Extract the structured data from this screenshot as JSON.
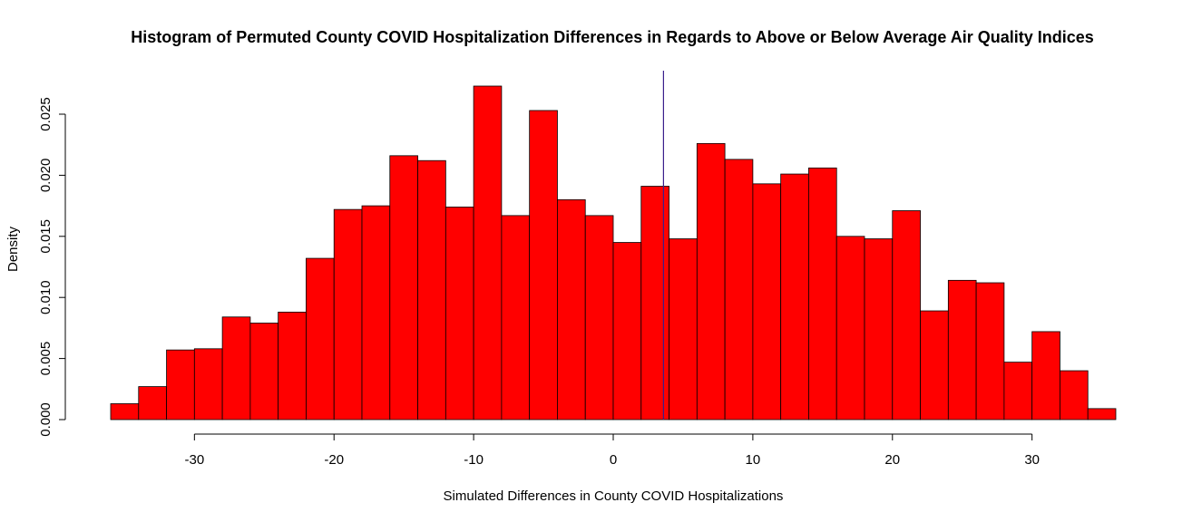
{
  "chart_data": {
    "type": "bar",
    "title": "Histogram of Permuted County COVID Hospitalization Differences in Regards to Above or Below Average Air Quality Indices",
    "xlabel": "Simulated Differences in County COVID Hospitalizations",
    "ylabel": "Density",
    "xlim": [
      -36,
      36
    ],
    "ylim": [
      0,
      0.025
    ],
    "x_ticks": [
      -30,
      -20,
      -10,
      0,
      10,
      20,
      30
    ],
    "x_tick_labels": [
      "-30",
      "-20",
      "-10",
      "0",
      "10",
      "20",
      "30"
    ],
    "y_ticks": [
      0,
      0.005,
      0.01,
      0.015,
      0.02,
      0.025
    ],
    "y_tick_labels": [
      "0.000",
      "0.005",
      "0.010",
      "0.015",
      "0.020",
      "0.025"
    ],
    "bin_width": 2,
    "bins": [
      {
        "start": -36,
        "end": -34,
        "density": 0.0013
      },
      {
        "start": -34,
        "end": -32,
        "density": 0.0027
      },
      {
        "start": -32,
        "end": -30,
        "density": 0.0057
      },
      {
        "start": -30,
        "end": -28,
        "density": 0.0058
      },
      {
        "start": -28,
        "end": -26,
        "density": 0.0084
      },
      {
        "start": -26,
        "end": -24,
        "density": 0.0079
      },
      {
        "start": -24,
        "end": -22,
        "density": 0.0088
      },
      {
        "start": -22,
        "end": -20,
        "density": 0.0132
      },
      {
        "start": -20,
        "end": -18,
        "density": 0.0172
      },
      {
        "start": -18,
        "end": -16,
        "density": 0.0175
      },
      {
        "start": -16,
        "end": -14,
        "density": 0.0216
      },
      {
        "start": -14,
        "end": -12,
        "density": 0.0212
      },
      {
        "start": -12,
        "end": -10,
        "density": 0.0174
      },
      {
        "start": -10,
        "end": -8,
        "density": 0.0273
      },
      {
        "start": -8,
        "end": -6,
        "density": 0.0167
      },
      {
        "start": -6,
        "end": -4,
        "density": 0.0253
      },
      {
        "start": -4,
        "end": -2,
        "density": 0.018
      },
      {
        "start": -2,
        "end": 0,
        "density": 0.0167
      },
      {
        "start": 0,
        "end": 2,
        "density": 0.0145
      },
      {
        "start": 2,
        "end": 4,
        "density": 0.0191
      },
      {
        "start": 4,
        "end": 6,
        "density": 0.0148
      },
      {
        "start": 6,
        "end": 8,
        "density": 0.0226
      },
      {
        "start": 8,
        "end": 10,
        "density": 0.0213
      },
      {
        "start": 10,
        "end": 12,
        "density": 0.0193
      },
      {
        "start": 12,
        "end": 14,
        "density": 0.0201
      },
      {
        "start": 14,
        "end": 16,
        "density": 0.0206
      },
      {
        "start": 16,
        "end": 18,
        "density": 0.015
      },
      {
        "start": 18,
        "end": 20,
        "density": 0.0148
      },
      {
        "start": 20,
        "end": 22,
        "density": 0.0171
      },
      {
        "start": 22,
        "end": 24,
        "density": 0.0089
      },
      {
        "start": 24,
        "end": 26,
        "density": 0.0114
      },
      {
        "start": 26,
        "end": 28,
        "density": 0.0112
      },
      {
        "start": 28,
        "end": 30,
        "density": 0.0047
      },
      {
        "start": 30,
        "end": 32,
        "density": 0.0072
      },
      {
        "start": 32,
        "end": 34,
        "density": 0.004
      },
      {
        "start": 34,
        "end": 36,
        "density": 0.0009
      }
    ],
    "vertical_line_x": 3.6,
    "bar_color": "#FF0000",
    "line_color": "#3B1F8C",
    "grid": false
  }
}
